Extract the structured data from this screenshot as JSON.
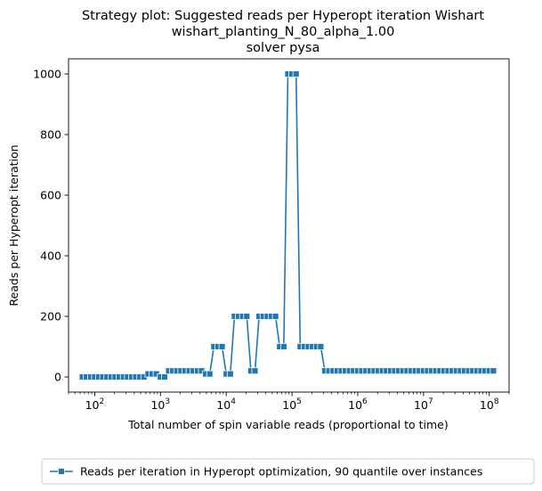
{
  "chart_data": {
    "type": "line",
    "title_lines": [
      "Strategy plot: Suggested reads per Hyperopt iteration Wishart",
      "wishart_planting_N_80_alpha_1.00",
      "solver pysa"
    ],
    "xlabel": "Total number of spin variable reads (proportional to time)",
    "ylabel": "Reads per Hyperopt iteration",
    "xscale": "log",
    "xlim": [
      40,
      200000000
    ],
    "ylim": [
      -50,
      1050
    ],
    "xticks": [
      {
        "value": 100,
        "base": "10",
        "exp": "2"
      },
      {
        "value": 1000,
        "base": "10",
        "exp": "3"
      },
      {
        "value": 10000,
        "base": "10",
        "exp": "4"
      },
      {
        "value": 100000,
        "base": "10",
        "exp": "5"
      },
      {
        "value": 1000000,
        "base": "10",
        "exp": "6"
      },
      {
        "value": 10000000,
        "base": "10",
        "exp": "7"
      },
      {
        "value": 100000000,
        "base": "10",
        "exp": "8"
      }
    ],
    "yticks": [
      0,
      200,
      400,
      600,
      800,
      1000
    ],
    "grid": false,
    "legend_position": "below plot, centered",
    "color": "#1f77b4",
    "series": [
      {
        "name": "Reads per iteration in Hyperopt optimization, 90 quantile over instances",
        "marker": "square",
        "x": [
          65,
          75,
          87,
          100,
          115,
          133,
          154,
          178,
          205,
          237,
          274,
          316,
          365,
          422,
          487,
          562,
          649,
          750,
          866,
          1000,
          1155,
          1334,
          1540,
          1778,
          2054,
          2371,
          2738,
          3162,
          3652,
          4217,
          4870,
          5623,
          6494,
          7499,
          8660,
          10000,
          11548,
          13335,
          15399,
          17783,
          20535,
          23714,
          27384,
          31623,
          36517,
          42170,
          48697,
          56234,
          64938,
          74989,
          86596,
          100000,
          115478,
          133352,
          153993,
          177828,
          205353,
          237137,
          273842,
          316228,
          365174,
          421697,
          486968,
          562341,
          649382,
          749894,
          865964,
          1000000,
          1154782,
          1333521,
          1539927,
          1778279,
          2053525,
          2371374,
          2738420,
          3162278,
          3651741,
          4216965,
          4869675,
          5623413,
          6493816,
          7498942,
          8659643,
          10000000,
          11547820,
          13335214,
          15399265,
          17782794,
          20535250,
          23713737,
          27384196,
          31622777,
          36517413,
          42169650,
          48696753,
          56234133,
          64938163,
          74989421,
          86596432,
          100000000,
          115478198
        ],
        "y": [
          0,
          0,
          0,
          0,
          0,
          0,
          0,
          0,
          0,
          0,
          0,
          0,
          0,
          0,
          0,
          0,
          10,
          10,
          10,
          0,
          0,
          20,
          20,
          20,
          20,
          20,
          20,
          20,
          20,
          20,
          10,
          10,
          100,
          100,
          100,
          10,
          10,
          200,
          200,
          200,
          200,
          20,
          20,
          200,
          200,
          200,
          200,
          200,
          100,
          100,
          1000,
          1000,
          1000,
          100,
          100,
          100,
          100,
          100,
          100,
          20,
          20,
          20,
          20,
          20,
          20,
          20,
          20,
          20,
          20,
          20,
          20,
          20,
          20,
          20,
          20,
          20,
          20,
          20,
          20,
          20,
          20,
          20,
          20,
          20,
          20,
          20,
          20,
          20,
          20,
          20,
          20,
          20,
          20,
          20,
          20,
          20,
          20,
          20,
          20,
          20,
          20
        ]
      }
    ]
  }
}
